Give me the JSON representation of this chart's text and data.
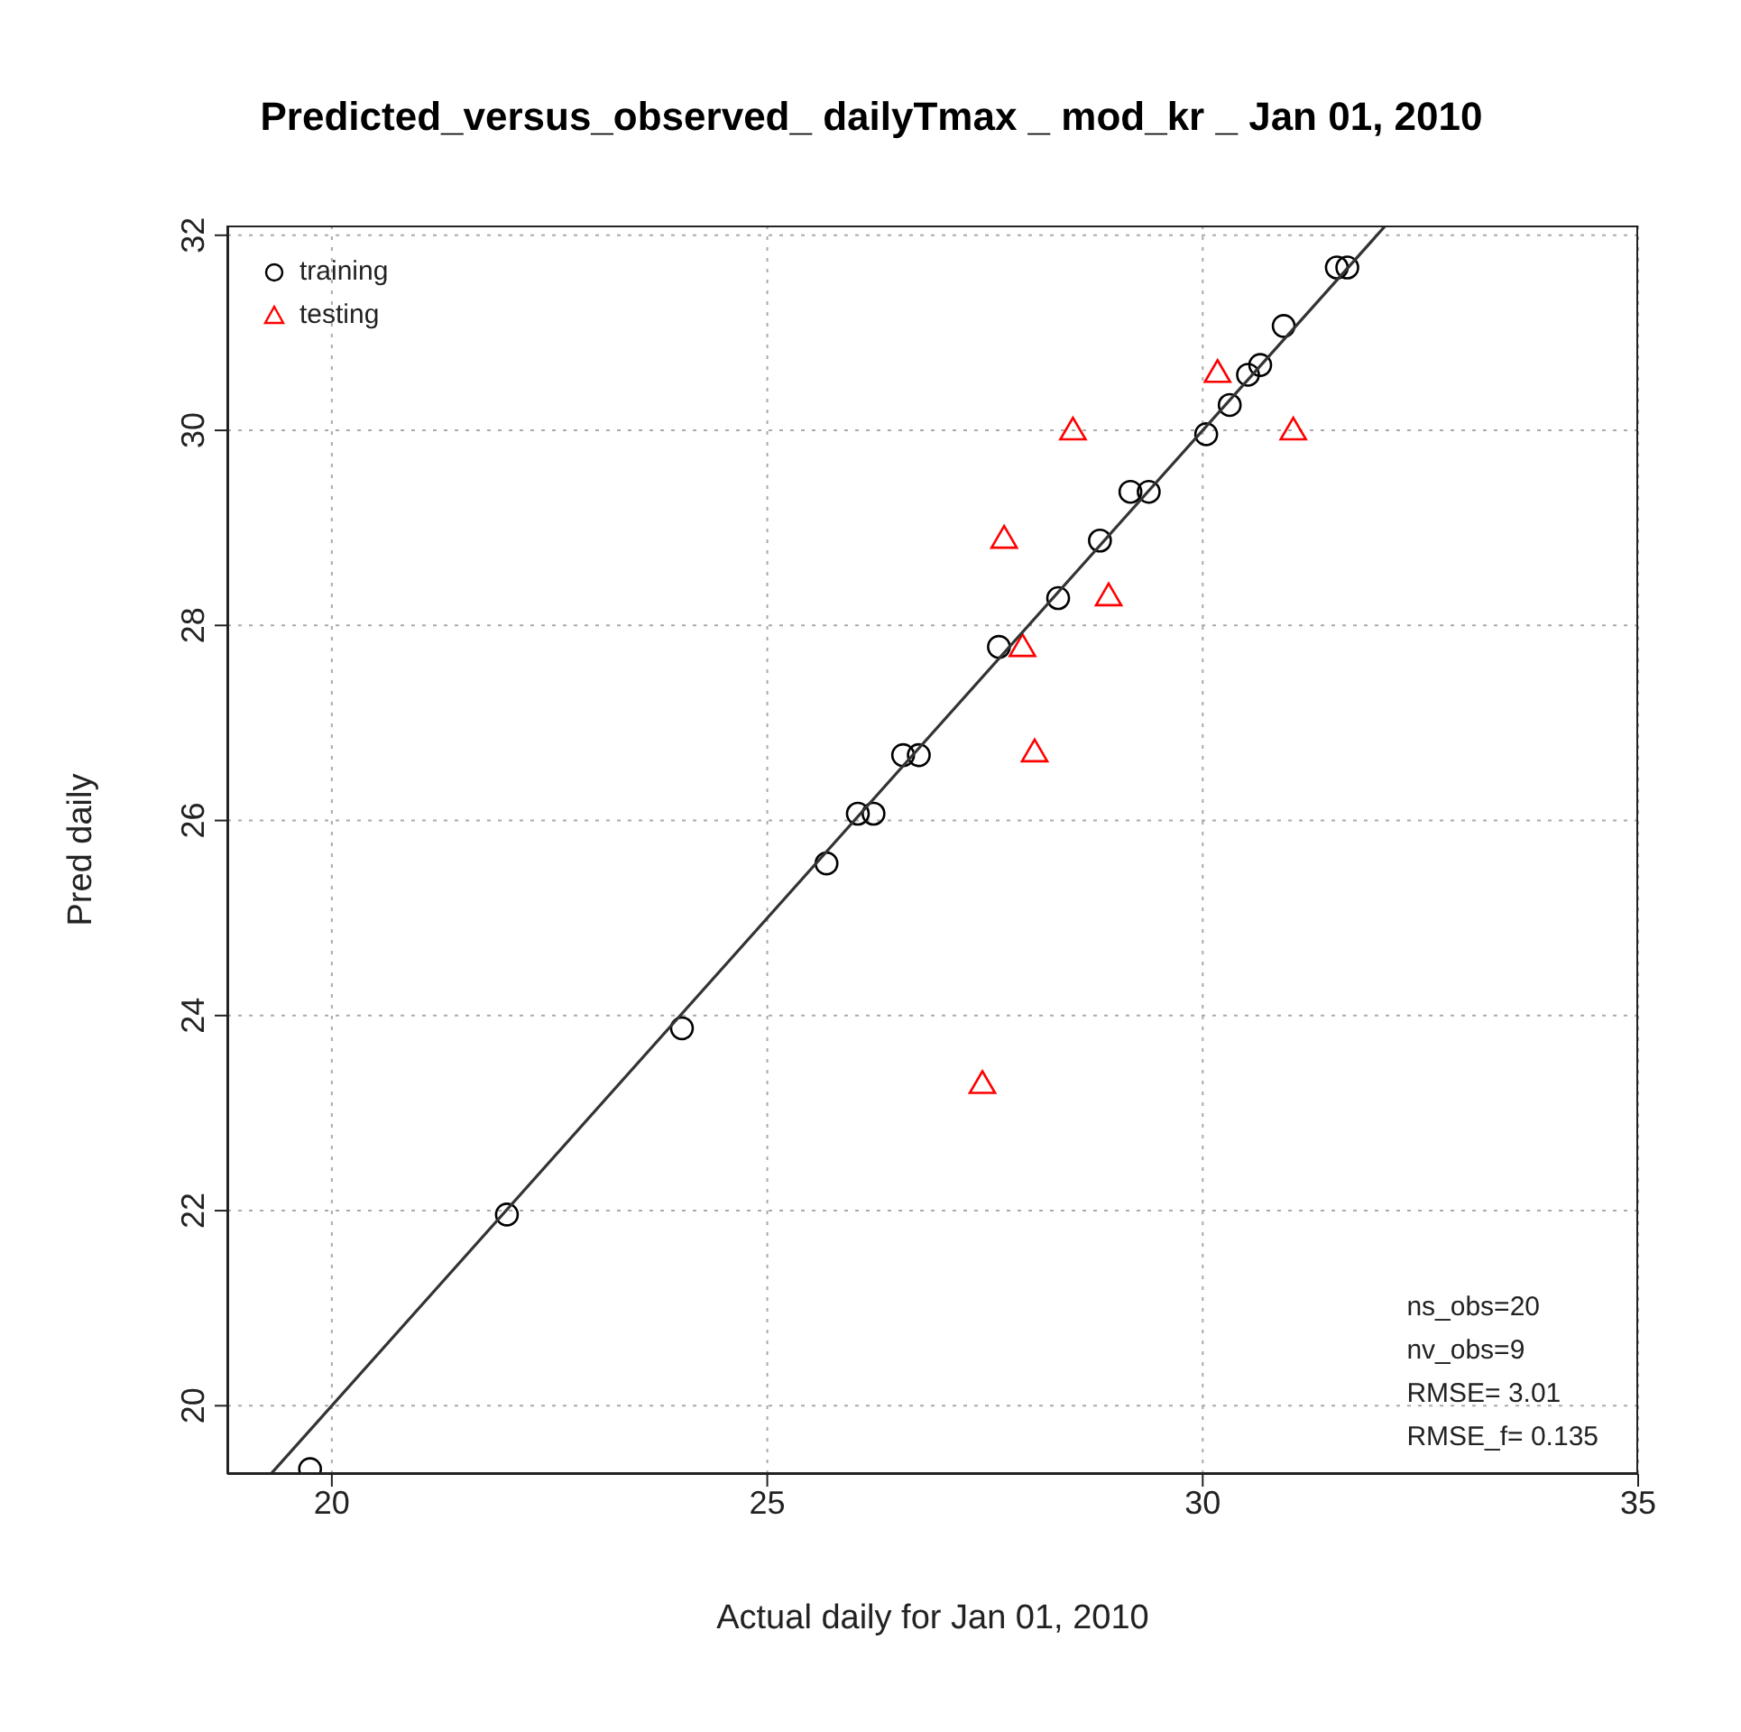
{
  "chart_data": {
    "type": "scatter",
    "title": "Predicted_versus_observed_ dailyTmax _ mod_kr _ Jan 01, 2010",
    "xlabel": "Actual daily for Jan 01, 2010",
    "ylabel": "Pred daily",
    "xlim": [
      18.8,
      35
    ],
    "xticks": [
      20,
      25,
      30,
      35
    ],
    "ylim": [
      19.3,
      32.1
    ],
    "yticks": [
      20,
      22,
      24,
      26,
      28,
      30,
      32
    ],
    "grid": true,
    "legend": "top left",
    "annotations": [
      "ns_obs=20",
      "nv_obs=9",
      "RMSE= 3.01",
      "RMSE_f= 0.135"
    ],
    "series": [
      {
        "name": "training",
        "color": "#000000",
        "marker": "circle",
        "x": [
          19.75,
          22.01,
          24.02,
          25.68,
          26.04,
          26.22,
          26.56,
          26.74,
          27.66,
          28.34,
          28.82,
          29.17,
          29.38,
          30.04,
          30.31,
          30.52,
          30.66,
          30.93,
          31.54,
          31.66
        ],
        "values": [
          19.35,
          21.96,
          23.87,
          25.56,
          26.07,
          26.07,
          26.67,
          26.67,
          27.78,
          28.28,
          28.87,
          29.37,
          29.37,
          29.96,
          30.26,
          30.57,
          30.67,
          31.07,
          31.67,
          31.67
        ]
      },
      {
        "name": "testing",
        "color": "#ff0000",
        "marker": "triangle",
        "x": [
          30.17,
          28.51,
          31.04,
          27.72,
          28.92,
          27.93,
          28.07,
          27.47
        ],
        "values": [
          30.59,
          30.0,
          30.0,
          28.89,
          28.3,
          27.78,
          26.7,
          23.3
        ]
      },
      {
        "type": "line",
        "color": "#333333",
        "marker": "none",
        "line_style": "solid",
        "x": [
          19.31,
          32.1
        ],
        "values": [
          19.31,
          32.1
        ]
      }
    ]
  }
}
